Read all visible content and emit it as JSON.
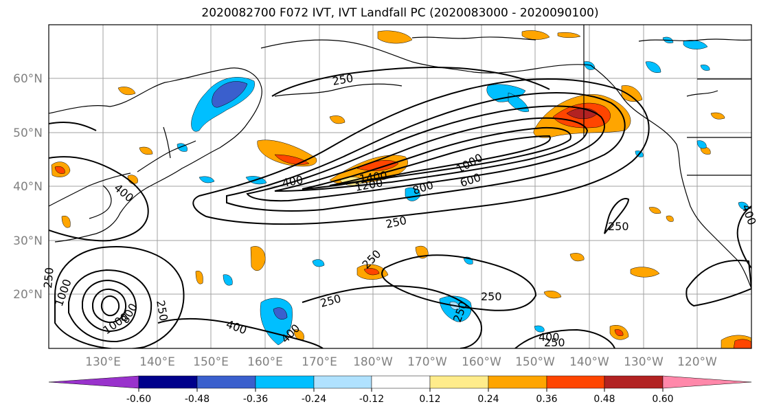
{
  "title": "2020082700 F072 IVT, IVT Landfall PC (2020083000 - 2020090100)",
  "lon_labels": [
    "130°E",
    "140°E",
    "150°E",
    "160°E",
    "170°E",
    "180°W",
    "170°W",
    "160°W",
    "150°W",
    "140°W",
    "130°W",
    "120°W"
  ],
  "lat_labels": [
    "60°N",
    "50°N",
    "40°N",
    "30°N",
    "20°N"
  ],
  "contour_labels": [
    "250",
    "250",
    "250",
    "250",
    "250",
    "250",
    "250",
    "250",
    "250",
    "400",
    "400",
    "400",
    "400",
    "400",
    "400",
    "600",
    "800",
    "1000",
    "1200",
    "1400",
    "1000",
    "800",
    "1000",
    "250"
  ],
  "colorbar": {
    "ticks": [
      "-0.60",
      "-0.48",
      "-0.36",
      "-0.24",
      "-0.12",
      "0.12",
      "0.24",
      "0.36",
      "0.48",
      "0.60"
    ],
    "colors": [
      "#9932cc",
      "#00008b",
      "#3a5fcd",
      "#00bfff",
      "#b0e2ff",
      "#ffffff",
      "#ffec8b",
      "#ffa500",
      "#ff4500",
      "#b22222",
      "#ff88aa"
    ]
  }
}
